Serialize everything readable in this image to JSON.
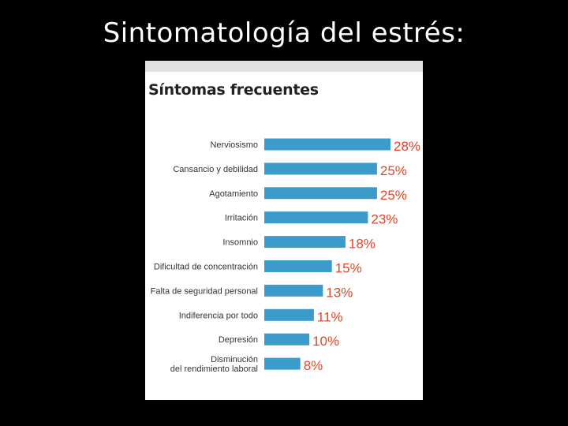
{
  "slide": {
    "title": "Sintomatología del estrés:"
  },
  "colors": {
    "bar": "#3b9ccc",
    "value": "#e0452a",
    "background": "#000000",
    "panel": "#ffffff"
  },
  "chart_data": {
    "type": "bar",
    "orientation": "horizontal",
    "title": "Síntomas frecuentes",
    "categories": [
      "Nerviosismo",
      "Cansancio y debilidad",
      "Agotamiento",
      "Irritación",
      "Insomnio",
      "Dificultad de concentración",
      "Falta de seguridad personal",
      "Indiferencia por todo",
      "Depresión",
      "Disminución\ndel rendimiento laboral"
    ],
    "values": [
      28,
      25,
      25,
      23,
      18,
      15,
      13,
      11,
      10,
      8
    ],
    "value_labels": [
      "28%",
      "25%",
      "25%",
      "23%",
      "18%",
      "15%",
      "13%",
      "11%",
      "10%",
      "8%"
    ],
    "unit": "%",
    "xlim": [
      0,
      28
    ],
    "grid": false,
    "legend": "none"
  }
}
